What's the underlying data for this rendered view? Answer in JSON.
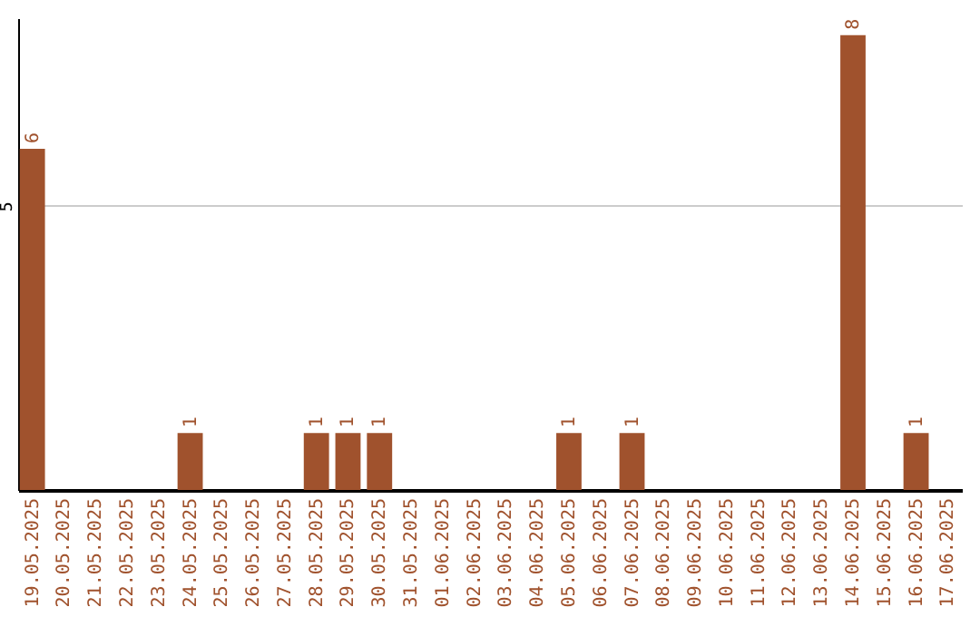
{
  "chart_data": {
    "type": "bar",
    "categories": [
      "19.05.2025",
      "20.05.2025",
      "21.05.2025",
      "22.05.2025",
      "23.05.2025",
      "24.05.2025",
      "25.05.2025",
      "26.05.2025",
      "27.05.2025",
      "28.05.2025",
      "29.05.2025",
      "30.05.2025",
      "31.05.2025",
      "01.06.2025",
      "02.06.2025",
      "03.06.2025",
      "04.06.2025",
      "05.06.2025",
      "06.06.2025",
      "07.06.2025",
      "08.06.2025",
      "09.06.2025",
      "10.06.2025",
      "11.06.2025",
      "12.06.2025",
      "13.06.2025",
      "14.06.2025",
      "15.06.2025",
      "16.06.2025",
      "17.06.2025"
    ],
    "values": [
      6,
      0,
      0,
      0,
      0,
      1,
      0,
      0,
      0,
      1,
      1,
      1,
      0,
      0,
      0,
      0,
      0,
      1,
      0,
      1,
      0,
      0,
      0,
      0,
      0,
      0,
      8,
      0,
      1,
      0
    ],
    "value_labels": [
      "6",
      null,
      null,
      null,
      null,
      "1",
      null,
      null,
      null,
      "1",
      "1",
      "1",
      null,
      null,
      null,
      null,
      null,
      "1",
      null,
      "1",
      null,
      null,
      null,
      null,
      null,
      null,
      "8",
      null,
      "1",
      null
    ],
    "color": "#a0522d",
    "ylim": [
      0,
      8.3
    ],
    "yticks": [
      5
    ],
    "grid": "y"
  }
}
